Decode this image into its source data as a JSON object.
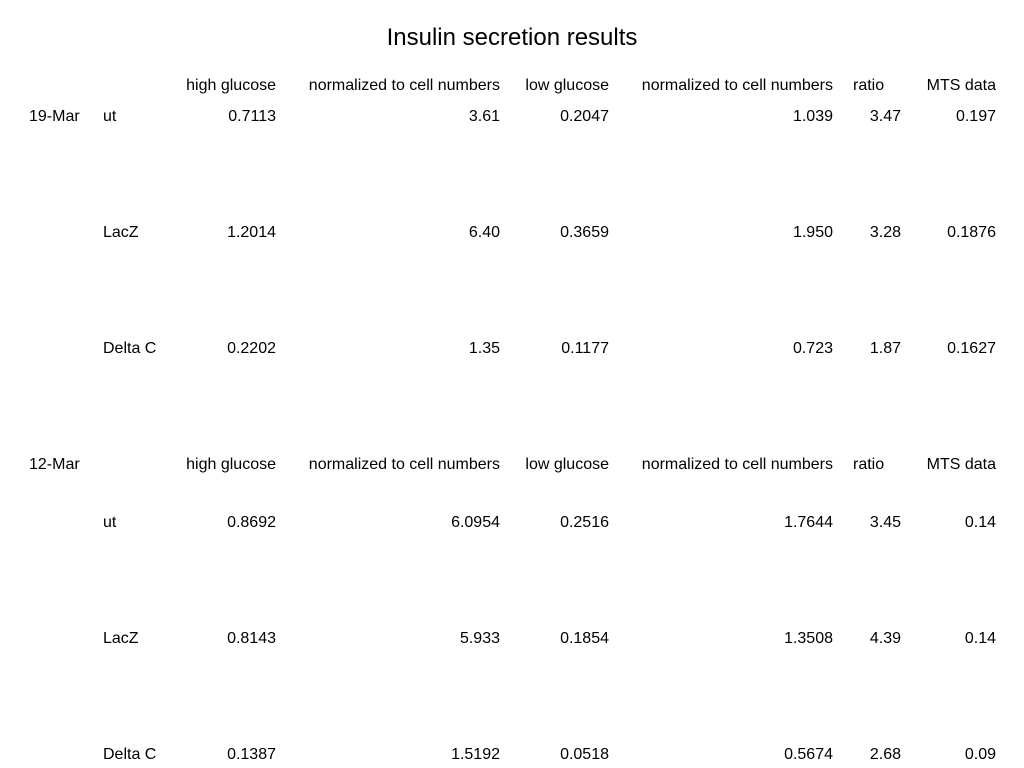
{
  "title": "Insulin secretion results",
  "headers": {
    "high_glucose": "high glucose",
    "high_norm": "normalized to cell numbers",
    "low_glucose": "low glucose",
    "low_norm": "normalized to cell numbers",
    "ratio": "ratio",
    "mts": "MTS data"
  },
  "groups": [
    {
      "date": "19-Mar",
      "rows": [
        {
          "condition": "ut",
          "high_glucose": "0.7113",
          "high_norm": "3.61",
          "low_glucose": "0.2047",
          "low_norm": "1.039",
          "ratio": "3.47",
          "mts": "0.197"
        },
        {
          "condition": "LacZ",
          "high_glucose": "1.2014",
          "high_norm": "6.40",
          "low_glucose": "0.3659",
          "low_norm": "1.950",
          "ratio": "3.28",
          "mts": "0.1876"
        },
        {
          "condition": "Delta C",
          "high_glucose": "0.2202",
          "high_norm": "1.35",
          "low_glucose": "0.1177",
          "low_norm": "0.723",
          "ratio": "1.87",
          "mts": "0.1627"
        }
      ]
    },
    {
      "date": "12-Mar",
      "rows": [
        {
          "condition": "ut",
          "high_glucose": "0.8692",
          "high_norm": "6.0954",
          "low_glucose": "0.2516",
          "low_norm": "1.7644",
          "ratio": "3.45",
          "mts": "0.14"
        },
        {
          "condition": "LacZ",
          "high_glucose": "0.8143",
          "high_norm": "5.933",
          "low_glucose": "0.1854",
          "low_norm": "1.3508",
          "ratio": "4.39",
          "mts": "0.14"
        },
        {
          "condition": "Delta C",
          "high_glucose": "0.1387",
          "high_norm": "1.5192",
          "low_glucose": "0.0518",
          "low_norm": "0.5674",
          "ratio": "2.68",
          "mts": "0.09"
        }
      ]
    }
  ]
}
